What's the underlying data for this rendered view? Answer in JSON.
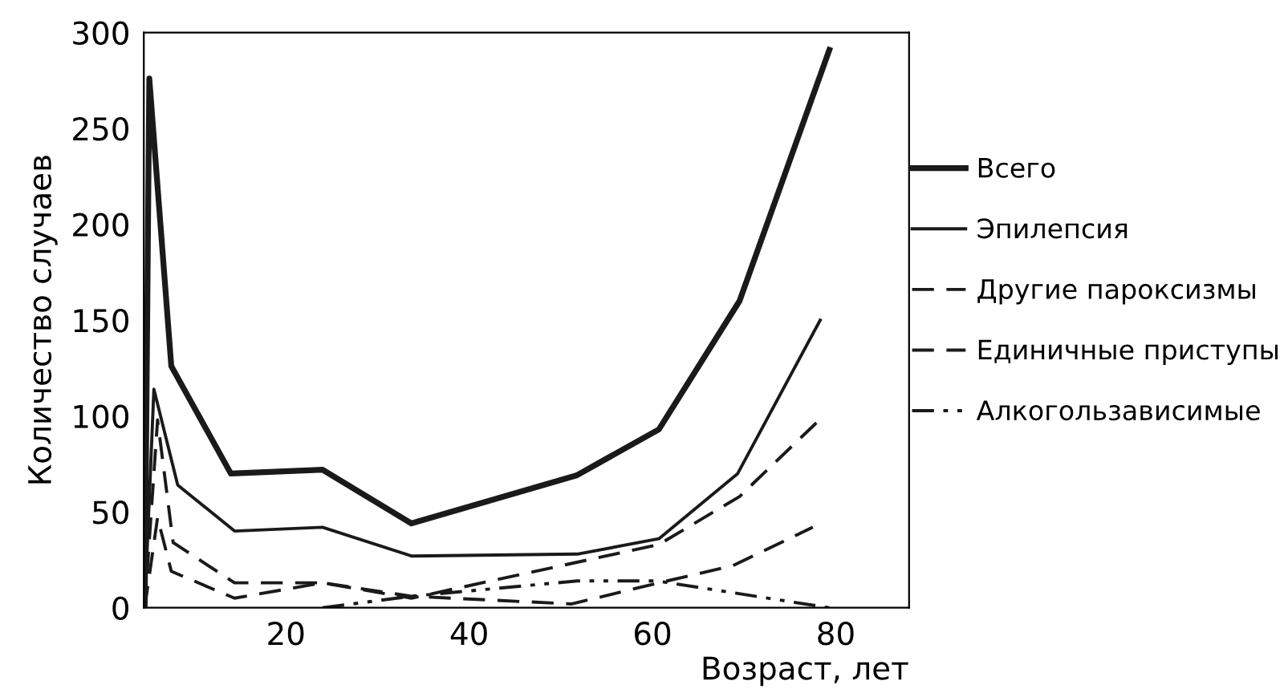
{
  "chart_data": {
    "type": "line",
    "xlabel": "Возраст, лет",
    "ylabel": "Количество случаев",
    "xlim": [
      4.5,
      88
    ],
    "ylim": [
      0,
      300
    ],
    "xticks": [
      20,
      40,
      60,
      80
    ],
    "yticks": [
      0,
      50,
      100,
      150,
      200,
      250,
      300
    ],
    "grid": false,
    "legend": "right",
    "marker": "none",
    "series": [
      {
        "name": "Всего",
        "color": "#1a1a1a",
        "line_style": "solid",
        "x": [
          4.6,
          5.1,
          7.5,
          14,
          24,
          33.7,
          51.7,
          60.7,
          69.5,
          79.3
        ],
        "values": [
          2,
          276,
          126,
          70,
          72,
          44,
          69,
          93,
          160,
          291
        ]
      },
      {
        "name": "Эпилепсия",
        "color": "#1a1a1a",
        "line_style": "solid",
        "x": [
          4.6,
          5.6,
          8.2,
          14.4,
          24,
          33.7,
          51.8,
          60.7,
          69.3,
          78.3
        ],
        "values": [
          0,
          114,
          64,
          40,
          42,
          27,
          28,
          36,
          70,
          150
        ]
      },
      {
        "name": "Другие пароксизмы",
        "color": "#1a1a1a",
        "line_style": "dashed",
        "x": [
          4.6,
          6,
          7.7,
          14.4,
          24,
          33.7,
          60.7,
          69.5,
          78
        ],
        "values": [
          0,
          98,
          34,
          13,
          13,
          5,
          33,
          58,
          97
        ]
      },
      {
        "name": "Единичные приступы",
        "color": "#1a1a1a",
        "line_style": "dashed",
        "x": [
          4.6,
          6,
          7.5,
          14.4,
          24,
          33.7,
          51.2,
          60.7,
          68.8,
          77.5
        ],
        "values": [
          0,
          47,
          19,
          5,
          13,
          6,
          2,
          13,
          22,
          42
        ]
      },
      {
        "name": "Алкогользависимые",
        "color": "#1a1a1a",
        "line_style": "dashdot",
        "x": [
          24,
          33.7,
          51.8,
          60.5,
          79.3
        ],
        "values": [
          0,
          6,
          14,
          14,
          0
        ]
      }
    ]
  }
}
